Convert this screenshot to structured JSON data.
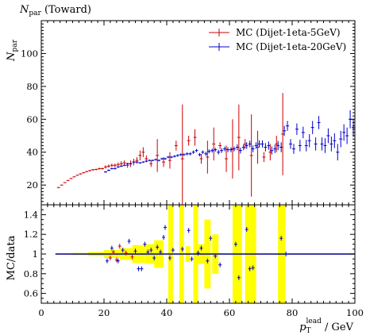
{
  "chart_data": {
    "type": "scatter",
    "title": "N_par (Toward)",
    "title_main": "N",
    "title_sub": "par",
    "title_rest": " (Toward)",
    "ylabel_main": "N",
    "ylabel_sub": "par",
    "xlabel_main": "p",
    "xlabel_sub": "T",
    "xlabel_sup": "lead",
    "xlabel_unit": " / GeV",
    "ratio_ylabel": "MC/data",
    "xlim": [
      0,
      100
    ],
    "ylim": [
      8,
      120
    ],
    "ratio_ylim": [
      0.5,
      1.5
    ],
    "xticks": [
      0,
      20,
      40,
      60,
      80,
      100
    ],
    "yticks": [
      20,
      40,
      60,
      80,
      100
    ],
    "ratio_yticks": [
      0.6,
      0.8,
      1,
      1.2,
      1.4
    ],
    "legend_position": "top-right",
    "colors": {
      "red": "#cc0000",
      "blue": "#0000cc",
      "band": "#ffff00",
      "ref": "#000088"
    },
    "series": [
      {
        "name": "MC (Dijet-1eta-5GeV)",
        "color": "red",
        "x": [
          5.5,
          6.5,
          7.5,
          8.5,
          9.5,
          10.5,
          11.5,
          12.5,
          13.5,
          14.5,
          15.5,
          16.5,
          17.5,
          18.5,
          19.5,
          20.5,
          21.5,
          22.5,
          23.5,
          24.5,
          25.5,
          26.5,
          27.5,
          28.5,
          29.5,
          30.5,
          31.5,
          32.5,
          33.5,
          35,
          37,
          39,
          41,
          43,
          45,
          47,
          49,
          51,
          53,
          55,
          57,
          59,
          61,
          63,
          65,
          67,
          69,
          71,
          73,
          75,
          77
        ],
        "y": [
          18.5,
          20,
          21.5,
          22.8,
          24,
          25,
          26,
          26.8,
          27.5,
          28.2,
          28.8,
          29.3,
          29.5,
          30,
          30,
          31,
          31.5,
          32,
          32,
          32.5,
          33,
          33.5,
          32,
          33,
          34,
          35,
          38,
          40,
          36,
          33,
          38,
          34,
          35,
          44,
          36,
          47,
          49,
          36,
          37,
          45,
          44,
          36,
          42,
          49,
          45,
          38,
          43,
          37,
          40,
          45,
          51
        ],
        "err": [
          0.3,
          0.3,
          0.3,
          0.3,
          0.3,
          0.3,
          0.3,
          0.4,
          0.4,
          0.4,
          0.5,
          0.5,
          0.5,
          0.6,
          0.6,
          1,
          1,
          1,
          1.2,
          1.2,
          1.5,
          1.5,
          1.5,
          2,
          2,
          2,
          3,
          3,
          2,
          2,
          10,
          3,
          5,
          3,
          33,
          3,
          5,
          3,
          10,
          10,
          2,
          8,
          18,
          20,
          3,
          25,
          10,
          3,
          5,
          5,
          25
        ]
      },
      {
        "name": "MC (Dijet-1eta-20GeV)",
        "color": "blue",
        "x": [
          20.5,
          21.5,
          22.5,
          23.5,
          24.5,
          25.5,
          26.5,
          27.5,
          28.5,
          29.5,
          30.5,
          31.5,
          32.5,
          33.5,
          34.5,
          35.5,
          36.5,
          37.5,
          38.5,
          39.5,
          40.5,
          41.5,
          42.5,
          43.5,
          44.5,
          45.5,
          46.5,
          47.5,
          48.5,
          49.5,
          50.5,
          51.5,
          52.5,
          53.5,
          54.5,
          55.5,
          56.5,
          57.5,
          58.5,
          59.5,
          60.5,
          61.5,
          62.5,
          63.5,
          64.5,
          65.5,
          66.5,
          67.5,
          68.5,
          69.5,
          70.5,
          71.5,
          72.5,
          73.5,
          74.5,
          75.5,
          76.5,
          77.5,
          78.5,
          79.5,
          80.5,
          81.5,
          82.5,
          83.5,
          84.5,
          85.5,
          86.5,
          87.5,
          88.5,
          89.5,
          90.5,
          91.5,
          92.5,
          93.5,
          94.5,
          95.5,
          96.5,
          97.5,
          98.5,
          99.5
        ],
        "y": [
          28,
          29,
          30,
          30,
          31,
          31.5,
          32,
          33,
          33,
          34,
          34,
          33.5,
          34,
          34.5,
          35,
          35,
          35.5,
          35,
          36,
          36,
          37,
          37,
          37.5,
          38,
          38.5,
          38.5,
          39,
          39,
          40,
          41,
          38.5,
          40,
          39,
          40.5,
          41,
          41.5,
          40,
          41,
          42,
          41.5,
          41.5,
          42,
          43,
          41,
          43,
          44,
          45,
          42,
          44,
          45,
          45,
          43,
          44,
          41,
          42,
          44,
          43,
          53,
          56,
          45,
          42,
          54,
          44,
          52,
          44,
          47,
          55,
          45,
          58,
          45,
          44,
          50,
          45,
          47,
          40,
          48,
          52,
          50,
          60,
          55
        ],
        "err": [
          0.5,
          0.5,
          0.5,
          0.5,
          0.5,
          0.5,
          0.5,
          0.5,
          0.5,
          0.5,
          0.5,
          0.5,
          0.5,
          0.5,
          0.5,
          0.5,
          0.6,
          0.6,
          0.6,
          0.6,
          0.7,
          0.7,
          0.7,
          0.8,
          0.8,
          0.8,
          0.9,
          0.9,
          1,
          1,
          1,
          1,
          1.2,
          1.2,
          1.2,
          1.2,
          1.4,
          1.4,
          1.4,
          1.5,
          1.5,
          1.5,
          1.8,
          1.8,
          1.8,
          2,
          2,
          2,
          2,
          2.2,
          2.2,
          2.5,
          2.5,
          2.5,
          2.5,
          2.8,
          3,
          3,
          3,
          3,
          3,
          3.5,
          3.5,
          3.5,
          3.5,
          4,
          4,
          4,
          4,
          4,
          4.5,
          4.5,
          4.5,
          4.5,
          5,
          5,
          5,
          5,
          5.5,
          5.5
        ]
      }
    ],
    "ratio_points": [
      {
        "x": 22,
        "y": 0.96,
        "color": "red"
      },
      {
        "x": 23,
        "y": 1.02,
        "color": "red"
      },
      {
        "x": 24,
        "y": 0.94,
        "color": "red"
      },
      {
        "x": 25,
        "y": 1.08,
        "color": "red"
      },
      {
        "x": 27,
        "y": 1.01,
        "color": "red"
      },
      {
        "x": 29,
        "y": 0.97,
        "color": "red"
      },
      {
        "x": 21,
        "y": 0.93,
        "color": "blue"
      },
      {
        "x": 22.5,
        "y": 1.06,
        "color": "blue"
      },
      {
        "x": 24.5,
        "y": 0.93,
        "color": "blue"
      },
      {
        "x": 26,
        "y": 1.04,
        "color": "blue"
      },
      {
        "x": 28,
        "y": 1.13,
        "color": "blue"
      },
      {
        "x": 30,
        "y": 1.03,
        "color": "blue"
      },
      {
        "x": 31,
        "y": 0.85,
        "color": "blue"
      },
      {
        "x": 32,
        "y": 0.85,
        "color": "blue"
      },
      {
        "x": 33,
        "y": 1.1,
        "color": "blue"
      },
      {
        "x": 34,
        "y": 1.02,
        "color": "blue"
      },
      {
        "x": 35,
        "y": 1.04,
        "color": "blue"
      },
      {
        "x": 36,
        "y": 0.96,
        "color": "blue"
      },
      {
        "x": 37,
        "y": 1.07,
        "color": "blue"
      },
      {
        "x": 38,
        "y": 1.02,
        "color": "blue"
      },
      {
        "x": 39,
        "y": 1.17,
        "color": "blue"
      },
      {
        "x": 39.5,
        "y": 1.27,
        "color": "blue"
      },
      {
        "x": 41,
        "y": 0.96,
        "color": "blue"
      },
      {
        "x": 42,
        "y": 1.04,
        "color": "blue"
      },
      {
        "x": 45,
        "y": 1.05,
        "color": "blue"
      },
      {
        "x": 47,
        "y": 1.24,
        "color": "blue"
      },
      {
        "x": 48,
        "y": 0.95,
        "color": "blue"
      },
      {
        "x": 50,
        "y": 1.01,
        "color": "blue"
      },
      {
        "x": 51,
        "y": 1.06,
        "color": "blue"
      },
      {
        "x": 53,
        "y": 0.93,
        "color": "blue"
      },
      {
        "x": 54,
        "y": 1.16,
        "color": "blue"
      },
      {
        "x": 55.5,
        "y": 0.98,
        "color": "blue"
      },
      {
        "x": 57,
        "y": 0.89,
        "color": "blue"
      },
      {
        "x": 62,
        "y": 1.1,
        "color": "blue"
      },
      {
        "x": 63,
        "y": 0.76,
        "color": "blue"
      },
      {
        "x": 65.5,
        "y": 1.25,
        "color": "blue"
      },
      {
        "x": 66.5,
        "y": 0.85,
        "color": "blue"
      },
      {
        "x": 67.5,
        "y": 0.86,
        "color": "blue"
      },
      {
        "x": 76.5,
        "y": 1.16,
        "color": "blue"
      },
      {
        "x": 78,
        "y": 1.0,
        "color": "blue"
      }
    ],
    "ratio_band": [
      {
        "x0": 4.5,
        "x1": 10,
        "lo": 0.995,
        "hi": 1.005
      },
      {
        "x0": 10,
        "x1": 15,
        "lo": 0.99,
        "hi": 1.01
      },
      {
        "x0": 15,
        "x1": 20,
        "lo": 0.98,
        "hi": 1.02
      },
      {
        "x0": 20,
        "x1": 25,
        "lo": 0.96,
        "hi": 1.04
      },
      {
        "x0": 25,
        "x1": 29,
        "lo": 0.94,
        "hi": 1.06
      },
      {
        "x0": 29,
        "x1": 33,
        "lo": 0.91,
        "hi": 1.09
      },
      {
        "x0": 33,
        "x1": 36,
        "lo": 0.9,
        "hi": 1.1
      },
      {
        "x0": 36,
        "x1": 39,
        "lo": 0.86,
        "hi": 1.14
      },
      {
        "x0": 40.5,
        "x1": 42,
        "lo": 0.5,
        "hi": 1.5
      },
      {
        "x0": 44,
        "x1": 45.5,
        "lo": 0.5,
        "hi": 1.5
      },
      {
        "x0": 46,
        "x1": 47.5,
        "lo": 0.92,
        "hi": 1.08
      },
      {
        "x0": 48.5,
        "x1": 50,
        "lo": 0.5,
        "hi": 1.5
      },
      {
        "x0": 50,
        "x1": 52,
        "lo": 0.9,
        "hi": 1.1
      },
      {
        "x0": 52,
        "x1": 54,
        "lo": 0.65,
        "hi": 1.35
      },
      {
        "x0": 54.5,
        "x1": 56.5,
        "lo": 0.8,
        "hi": 1.2
      },
      {
        "x0": 61,
        "x1": 64,
        "lo": 0.5,
        "hi": 1.5
      },
      {
        "x0": 65,
        "x1": 66.5,
        "lo": 0.5,
        "hi": 1.5
      },
      {
        "x0": 66.5,
        "x1": 68.5,
        "lo": 0.5,
        "hi": 1.5
      },
      {
        "x0": 75.5,
        "x1": 77.8,
        "lo": 0.5,
        "hi": 1.5
      }
    ]
  }
}
